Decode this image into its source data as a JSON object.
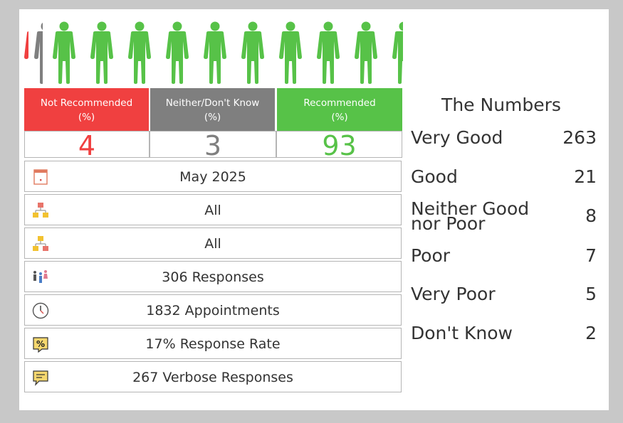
{
  "colors": {
    "not_recommended": "#f04040",
    "neither": "#7f7f7f",
    "recommended": "#57c248"
  },
  "summary": {
    "not_recommended": {
      "label_line1": "Not Recommended",
      "label_line2": "(%)",
      "value": "4"
    },
    "neither": {
      "label_line1": "Neither/Don't Know",
      "label_line2": "(%)",
      "value": "3"
    },
    "recommended": {
      "label_line1": "Recommended",
      "label_line2": "(%)",
      "value": "93"
    }
  },
  "rows": [
    {
      "icon": "calendar-icon",
      "text": "May 2025"
    },
    {
      "icon": "hierarchy-icon",
      "text": "All"
    },
    {
      "icon": "hierarchy-icon",
      "text": "All"
    },
    {
      "icon": "people-icon",
      "text": "306 Responses"
    },
    {
      "icon": "clock-icon",
      "text": "1832 Appointments"
    },
    {
      "icon": "percent-icon",
      "text": "17% Response Rate"
    },
    {
      "icon": "comment-icon",
      "text": "267 Verbose Responses"
    }
  ],
  "numbers": {
    "title": "The Numbers",
    "items": [
      {
        "label": "Very Good",
        "value": "263"
      },
      {
        "label": "Good",
        "value": "21"
      },
      {
        "label": "Neither Good nor Poor",
        "value": "8"
      },
      {
        "label": "Poor",
        "value": "7"
      },
      {
        "label": "Very Poor",
        "value": "5"
      },
      {
        "label": "Don't Know",
        "value": "2"
      }
    ]
  }
}
